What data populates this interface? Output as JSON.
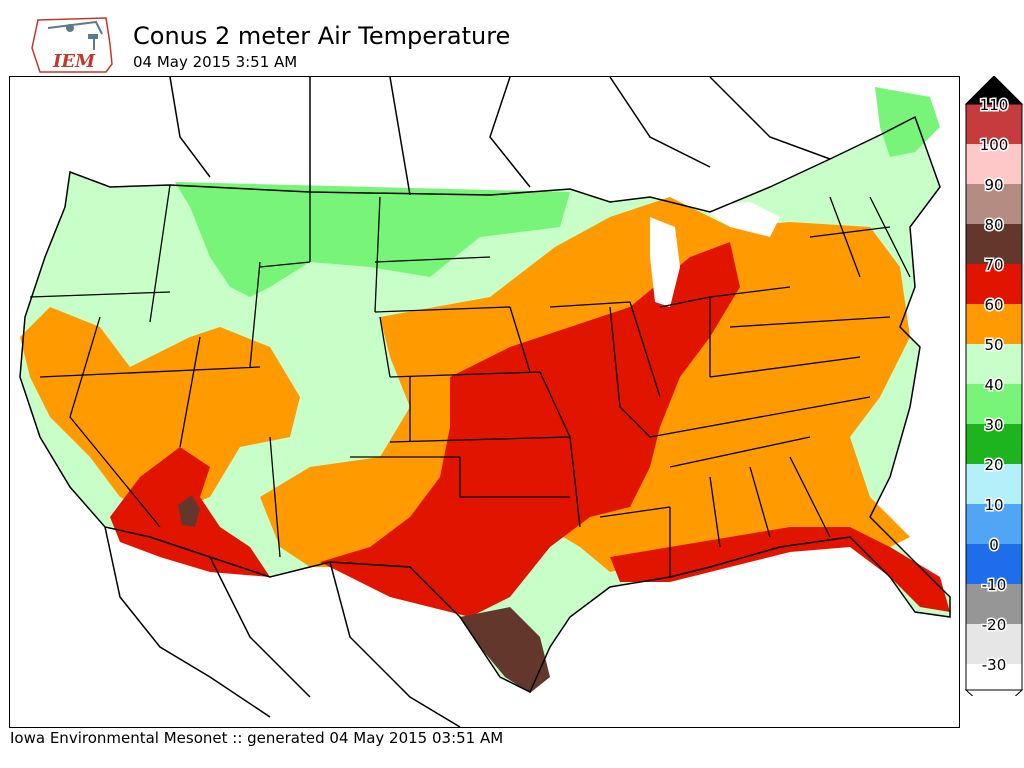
{
  "header": {
    "title": "Conus 2 meter Air Temperature",
    "subtitle": "04 May 2015 3:51 AM",
    "logo_text": "IEM"
  },
  "footer": {
    "text": "Iowa Environmental Mesonet :: generated 04 May 2015 03:51 AM"
  },
  "legend": {
    "top_arrow_color": "#000000",
    "bottom_arrow_color": "#ffffff",
    "bins": [
      {
        "label": "110",
        "color": "#c63c3c"
      },
      {
        "label": "100",
        "color": "#ffc8c8"
      },
      {
        "label": "90",
        "color": "#b48c82"
      },
      {
        "label": "80",
        "color": "#64372d"
      },
      {
        "label": "70",
        "color": "#e11400"
      },
      {
        "label": "60",
        "color": "#ff9b00"
      },
      {
        "label": "50",
        "color": "#c8ffc8"
      },
      {
        "label": "40",
        "color": "#78f578"
      },
      {
        "label": "30",
        "color": "#1eb41e"
      },
      {
        "label": "20",
        "color": "#b4f0fa"
      },
      {
        "label": "10",
        "color": "#50a5f5"
      },
      {
        "label": "0",
        "color": "#1e6eeb"
      },
      {
        "label": "-10",
        "color": "#969696"
      },
      {
        "label": "-20",
        "color": "#e6e6e6"
      },
      {
        "label": "-30",
        "color": "#ffffff"
      }
    ]
  },
  "map": {
    "colors": {
      "cool": "#c8ffc8",
      "green": "#78f578",
      "orange": "#ff9b00",
      "red": "#e11400",
      "brown": "#64372d",
      "water": "#ffffff",
      "border": "#000000"
    }
  }
}
